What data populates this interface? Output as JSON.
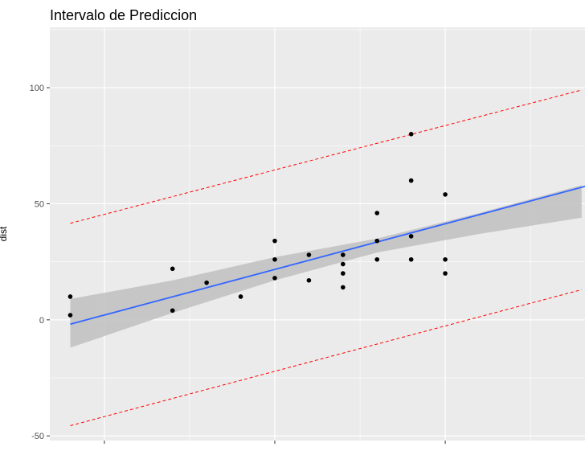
{
  "chart_data": {
    "type": "scatter",
    "title": "Intervalo de Prediccion",
    "xlabel": "",
    "ylabel": "dist",
    "xlim": [
      3.4,
      19.1
    ],
    "ylim": [
      -52,
      126
    ],
    "x_major_ticks": [
      5,
      10,
      15
    ],
    "x_minor_ticks": [
      7.5,
      12.5,
      17.5
    ],
    "y_ticks": [
      -50,
      0,
      50,
      100
    ],
    "y_tick_labels": [
      "-50",
      "0",
      "50",
      "100"
    ],
    "y_minor_ticks": [
      -25,
      25,
      75,
      125
    ],
    "grid": true,
    "legend": "none",
    "colors": {
      "panel": "#ebebeb",
      "grid": "#ffffff",
      "points": "#000000",
      "fit_line": "#3366ff",
      "confidence_band": "#bfbfbf",
      "prediction_lines": "#ff0000"
    },
    "points": [
      {
        "x": 4,
        "y": 2
      },
      {
        "x": 4,
        "y": 10
      },
      {
        "x": 7,
        "y": 4
      },
      {
        "x": 7,
        "y": 22
      },
      {
        "x": 8,
        "y": 16
      },
      {
        "x": 9,
        "y": 10
      },
      {
        "x": 10,
        "y": 18
      },
      {
        "x": 10,
        "y": 26
      },
      {
        "x": 10,
        "y": 34
      },
      {
        "x": 11,
        "y": 17
      },
      {
        "x": 11,
        "y": 28
      },
      {
        "x": 12,
        "y": 14
      },
      {
        "x": 12,
        "y": 20
      },
      {
        "x": 12,
        "y": 24
      },
      {
        "x": 12,
        "y": 28
      },
      {
        "x": 13,
        "y": 26
      },
      {
        "x": 13,
        "y": 34
      },
      {
        "x": 13,
        "y": 46
      },
      {
        "x": 14,
        "y": 26
      },
      {
        "x": 14,
        "y": 36
      },
      {
        "x": 14,
        "y": 60
      },
      {
        "x": 14,
        "y": 80
      },
      {
        "x": 15,
        "y": 20
      },
      {
        "x": 15,
        "y": 26
      },
      {
        "x": 15,
        "y": 54
      }
    ],
    "fit": {
      "intercept": -17.58,
      "slope": 3.93
    },
    "confidence_band": {
      "x": [
        4,
        7,
        10,
        13,
        16,
        19
      ],
      "lower": [
        -12,
        3,
        17,
        29,
        37,
        44
      ],
      "upper": [
        9,
        17,
        27,
        35,
        46,
        58
      ]
    },
    "prediction_lower": {
      "x": [
        4,
        19
      ],
      "y": [
        -45.6,
        13
      ]
    },
    "prediction_upper": {
      "x": [
        4,
        19
      ],
      "y": [
        41.6,
        99
      ]
    }
  }
}
